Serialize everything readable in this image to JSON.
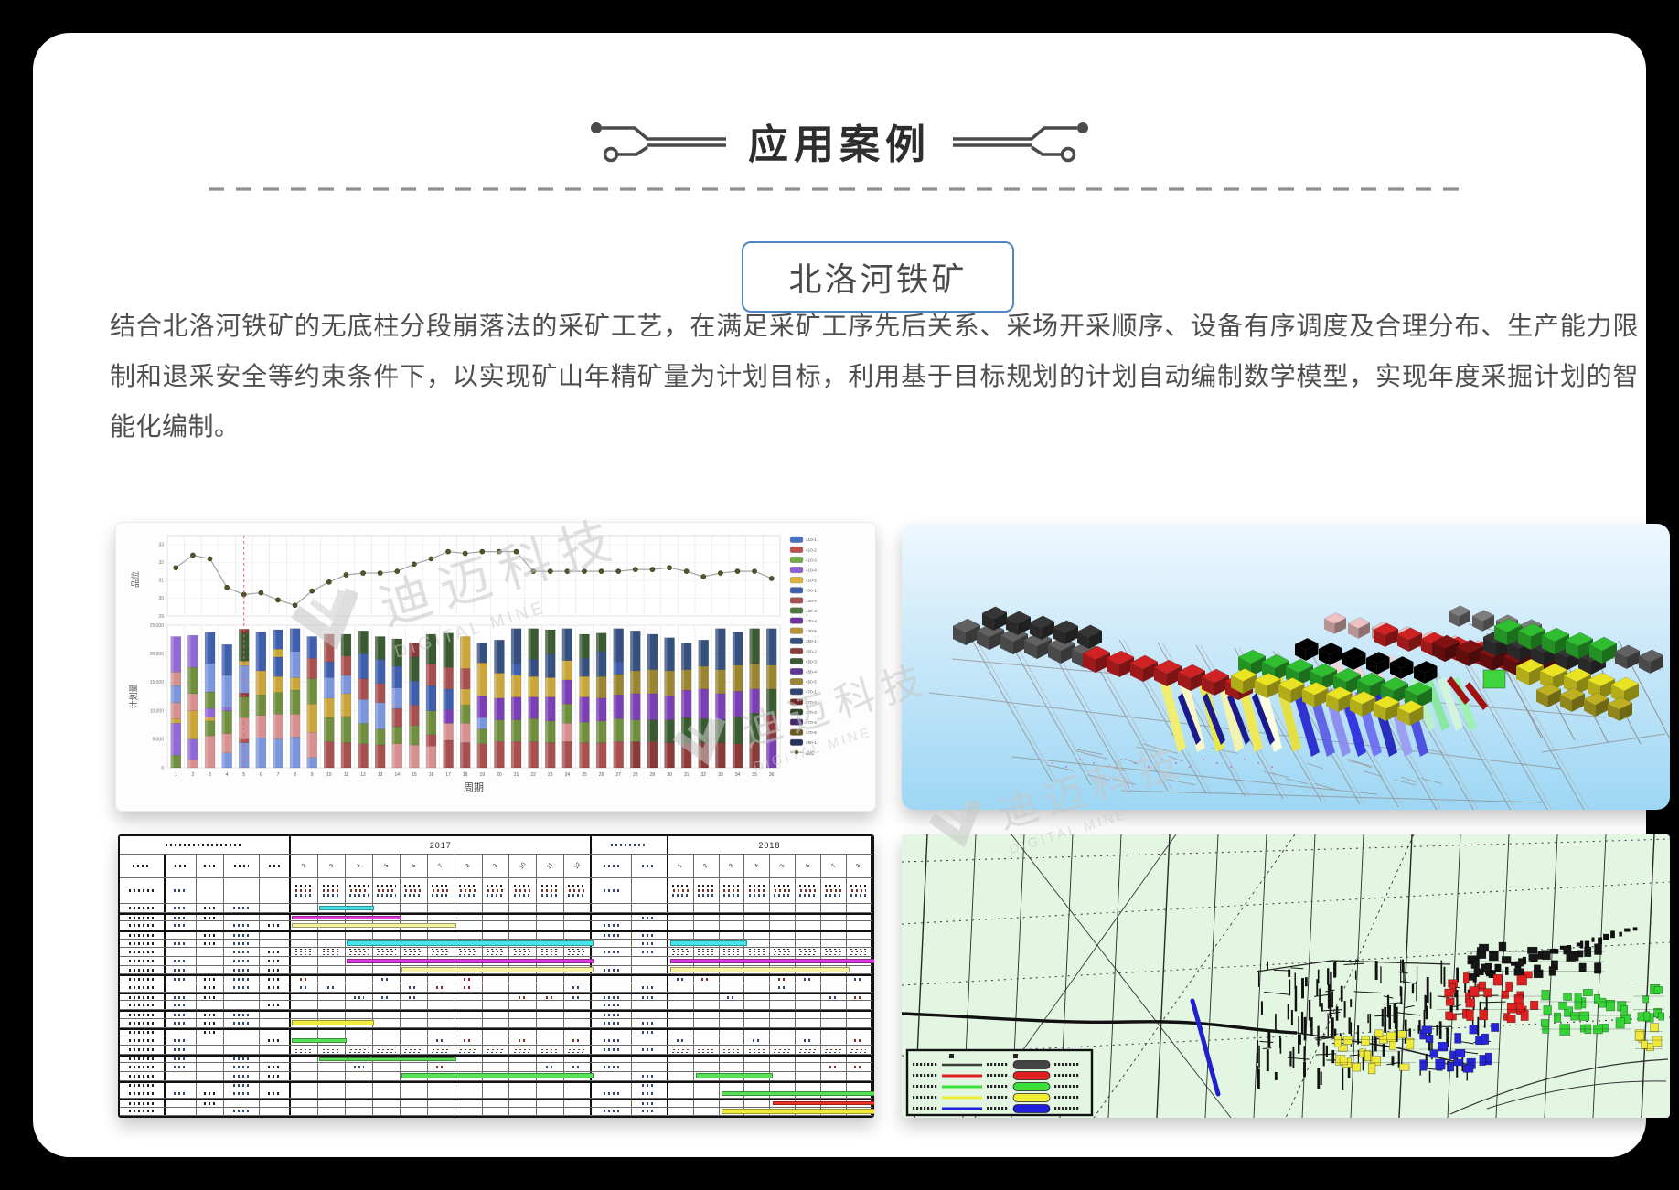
{
  "header": {
    "title": "应用案例"
  },
  "case": {
    "button_label": "北洛河铁矿"
  },
  "description": "结合北洛河铁矿的无底柱分段崩落法的采矿工艺，在满足采矿工序先后关系、采场开采顺序、设备有序调度及合理分布、生产能力限制和退采安全等约束条件下，以实现矿山年精矿量为计划目标，利用基于目标规划的计划自动编制数学模型，实现年度采掘计划的智能化编制。",
  "watermark": {
    "cn": "迪迈科技",
    "en": "DIGITAL MINE"
  },
  "chart_data": {
    "type": "bar",
    "title": "",
    "xlabel": "周期",
    "x": [
      1,
      2,
      3,
      4,
      5,
      6,
      7,
      8,
      9,
      10,
      11,
      12,
      13,
      14,
      15,
      16,
      17,
      18,
      19,
      20,
      21,
      22,
      23,
      24,
      25,
      26,
      27,
      28,
      29,
      30,
      31,
      32,
      33,
      34,
      35,
      36
    ],
    "line_series": {
      "name": "品位",
      "ylabel": "品位",
      "ylim": [
        29,
        33.5
      ],
      "yticks": [
        29,
        30,
        31,
        32,
        33
      ],
      "values": [
        31.7,
        32.4,
        32.2,
        30.6,
        30.2,
        30.3,
        29.9,
        29.6,
        30.4,
        30.9,
        31.3,
        31.4,
        31.4,
        31.5,
        31.9,
        32.2,
        32.6,
        32.5,
        32.6,
        32.6,
        32.6,
        31.5,
        31.5,
        31.5,
        31.5,
        31.5,
        31.5,
        31.6,
        31.6,
        31.7,
        31.5,
        31.2,
        31.4,
        31.5,
        31.5,
        31.1
      ]
    },
    "bar_ylabel": "计划量",
    "bar_ylim": [
      0,
      25000
    ],
    "bar_yticks": [
      0,
      5000,
      10000,
      15000,
      20000,
      25000
    ],
    "marker_period": 5,
    "marker_color": "#e06666",
    "bar_colors": [
      "#9168d8",
      "#6f8f3f",
      "#d79090",
      "#7b96dd",
      "#c9a53a",
      "#3f5fae",
      "#a85050",
      "#3a5a30",
      "#7a3fb5",
      "#8b3a3a",
      "#35507e",
      "#9a8530",
      "#5e3794"
    ],
    "legend_labels": [
      "410-1",
      "410-2",
      "410-3",
      "410-4",
      "410-5",
      "430-1",
      "430-2",
      "430-3",
      "430-4",
      "430-5",
      "450-1",
      "450-2",
      "450-3",
      "450-4",
      "450-5",
      "470-1",
      "470-2",
      "470-3",
      "470-4",
      "470-5",
      "490-1"
    ],
    "legend_colors": [
      "#4472c4",
      "#c0504d",
      "#70ad47",
      "#8f5fd6",
      "#e0b43c",
      "#3f5fae",
      "#a85050",
      "#4a7a3a",
      "#7030a0",
      "#b89530",
      "#35507e",
      "#8b3a3a",
      "#3a5a30",
      "#5e3794",
      "#9a8530",
      "#2f4470",
      "#6e2a2a",
      "#2d4628",
      "#46286e",
      "#6e5a1e",
      "#28345c"
    ],
    "bars": [
      [
        [
          1,
          2200
        ],
        [
          0,
          5600
        ],
        [
          4,
          800
        ],
        [
          2,
          2800
        ],
        [
          3,
          3000
        ],
        [
          2,
          2400
        ],
        [
          0,
          6200
        ]
      ],
      [
        [
          2,
          1400
        ],
        [
          0,
          3600
        ],
        [
          4,
          5000
        ],
        [
          2,
          3000
        ],
        [
          1,
          4600
        ],
        [
          0,
          5600
        ]
      ],
      [
        [
          2,
          5600
        ],
        [
          1,
          2600
        ],
        [
          4,
          700
        ],
        [
          0,
          1500
        ],
        [
          1,
          2900
        ],
        [
          3,
          5000
        ],
        [
          5,
          5400
        ]
      ],
      [
        [
          3,
          2600
        ],
        [
          2,
          3400
        ],
        [
          1,
          4000
        ],
        [
          0,
          600
        ],
        [
          3,
          5600
        ],
        [
          5,
          5400
        ]
      ],
      [
        [
          3,
          4400
        ],
        [
          6,
          600
        ],
        [
          2,
          3800
        ],
        [
          1,
          3600
        ],
        [
          9,
          700
        ],
        [
          3,
          4800
        ],
        [
          4,
          800
        ],
        [
          7,
          4900
        ],
        [
          9,
          700
        ]
      ],
      [
        [
          3,
          5200
        ],
        [
          2,
          4000
        ],
        [
          1,
          3600
        ],
        [
          4,
          4200
        ],
        [
          5,
          6800
        ]
      ],
      [
        [
          3,
          5000
        ],
        [
          2,
          4400
        ],
        [
          1,
          3800
        ],
        [
          4,
          2800
        ],
        [
          5,
          3400
        ],
        [
          4,
          1400
        ],
        [
          5,
          3400
        ]
      ],
      [
        [
          3,
          5400
        ],
        [
          2,
          4000
        ],
        [
          1,
          4200
        ],
        [
          4,
          2200
        ],
        [
          3,
          4600
        ],
        [
          5,
          4000
        ]
      ],
      [
        [
          3,
          1800
        ],
        [
          2,
          4400
        ],
        [
          4,
          5000
        ],
        [
          1,
          4400
        ],
        [
          6,
          3600
        ],
        [
          5,
          3800
        ]
      ],
      [
        [
          6,
          4600
        ],
        [
          1,
          4200
        ],
        [
          4,
          3400
        ],
        [
          3,
          3600
        ],
        [
          5,
          2800
        ],
        [
          6,
          4800
        ]
      ],
      [
        [
          6,
          4400
        ],
        [
          1,
          4600
        ],
        [
          4,
          4000
        ],
        [
          3,
          3200
        ],
        [
          6,
          3400
        ],
        [
          7,
          3800
        ]
      ],
      [
        [
          6,
          4200
        ],
        [
          1,
          3600
        ],
        [
          3,
          4200
        ],
        [
          6,
          3600
        ],
        [
          5,
          4400
        ],
        [
          7,
          4000
        ]
      ],
      [
        [
          6,
          4000
        ],
        [
          1,
          2800
        ],
        [
          3,
          4600
        ],
        [
          6,
          3400
        ],
        [
          5,
          4200
        ],
        [
          7,
          4000
        ]
      ],
      [
        [
          2,
          4200
        ],
        [
          1,
          3000
        ],
        [
          6,
          3200
        ],
        [
          3,
          3600
        ],
        [
          5,
          3800
        ],
        [
          7,
          4800
        ]
      ],
      [
        [
          2,
          4000
        ],
        [
          1,
          3400
        ],
        [
          6,
          3600
        ],
        [
          5,
          4200
        ],
        [
          7,
          4200
        ],
        [
          9,
          2400
        ]
      ],
      [
        [
          2,
          3800
        ],
        [
          6,
          2000
        ],
        [
          1,
          4200
        ],
        [
          5,
          4400
        ],
        [
          6,
          3800
        ],
        [
          7,
          5200
        ]
      ],
      [
        [
          6,
          4800
        ],
        [
          2,
          3000
        ],
        [
          8,
          2400
        ],
        [
          5,
          3600
        ],
        [
          6,
          3800
        ],
        [
          7,
          6000
        ]
      ],
      [
        [
          6,
          4400
        ],
        [
          2,
          3400
        ],
        [
          1,
          3200
        ],
        [
          4,
          2800
        ],
        [
          6,
          3600
        ],
        [
          4,
          5600
        ]
      ],
      [
        [
          6,
          4200
        ],
        [
          1,
          2600
        ],
        [
          3,
          2000
        ],
        [
          8,
          3800
        ],
        [
          4,
          5800
        ],
        [
          10,
          3400
        ]
      ],
      [
        [
          6,
          4600
        ],
        [
          1,
          3800
        ],
        [
          8,
          3800
        ],
        [
          4,
          4400
        ],
        [
          10,
          5800
        ]
      ],
      [
        [
          6,
          4600
        ],
        [
          1,
          3800
        ],
        [
          8,
          4000
        ],
        [
          4,
          3800
        ],
        [
          5,
          2000
        ],
        [
          10,
          6200
        ]
      ],
      [
        [
          6,
          4600
        ],
        [
          1,
          4000
        ],
        [
          8,
          3800
        ],
        [
          4,
          3600
        ],
        [
          10,
          3000
        ],
        [
          7,
          5400
        ]
      ],
      [
        [
          6,
          4400
        ],
        [
          1,
          3800
        ],
        [
          8,
          4200
        ],
        [
          4,
          3400
        ],
        [
          10,
          4200
        ],
        [
          7,
          4200
        ]
      ],
      [
        [
          6,
          4600
        ],
        [
          2,
          3200
        ],
        [
          1,
          3400
        ],
        [
          8,
          4200
        ],
        [
          4,
          3400
        ],
        [
          10,
          5600
        ]
      ],
      [
        [
          6,
          4400
        ],
        [
          1,
          3600
        ],
        [
          8,
          4400
        ],
        [
          4,
          3600
        ],
        [
          10,
          3200
        ],
        [
          7,
          4200
        ]
      ],
      [
        [
          6,
          4400
        ],
        [
          1,
          3800
        ],
        [
          8,
          4000
        ],
        [
          11,
          3800
        ],
        [
          10,
          4400
        ],
        [
          7,
          3200
        ]
      ],
      [
        [
          6,
          4600
        ],
        [
          1,
          4000
        ],
        [
          8,
          4200
        ],
        [
          11,
          3600
        ],
        [
          5,
          2200
        ],
        [
          10,
          5800
        ]
      ],
      [
        [
          9,
          4600
        ],
        [
          1,
          3800
        ],
        [
          8,
          4600
        ],
        [
          11,
          4000
        ],
        [
          10,
          7000
        ]
      ],
      [
        [
          9,
          4600
        ],
        [
          7,
          3800
        ],
        [
          8,
          4600
        ],
        [
          11,
          4200
        ],
        [
          10,
          6200
        ]
      ],
      [
        [
          9,
          4400
        ],
        [
          7,
          4000
        ],
        [
          8,
          4200
        ],
        [
          11,
          4400
        ],
        [
          10,
          5800
        ]
      ],
      [
        [
          9,
          4200
        ],
        [
          7,
          4600
        ],
        [
          8,
          4800
        ],
        [
          11,
          3600
        ],
        [
          10,
          4600
        ]
      ],
      [
        [
          9,
          4400
        ],
        [
          7,
          4200
        ],
        [
          8,
          5200
        ],
        [
          11,
          4000
        ],
        [
          10,
          4600
        ]
      ],
      [
        [
          9,
          4400
        ],
        [
          7,
          4000
        ],
        [
          8,
          4600
        ],
        [
          11,
          4200
        ],
        [
          10,
          7200
        ]
      ],
      [
        [
          9,
          4200
        ],
        [
          7,
          4800
        ],
        [
          8,
          4400
        ],
        [
          11,
          4600
        ],
        [
          10,
          5800
        ]
      ],
      [
        [
          9,
          4400
        ],
        [
          7,
          5200
        ],
        [
          8,
          4200
        ],
        [
          11,
          4400
        ],
        [
          7,
          6200
        ]
      ],
      [
        [
          8,
          5000
        ],
        [
          9,
          4200
        ],
        [
          7,
          4600
        ],
        [
          11,
          4200
        ],
        [
          10,
          6400
        ]
      ]
    ]
  },
  "table_panel": {
    "year1": "2017",
    "year2": "2018",
    "g1_month_labels": [
      "2",
      "3",
      "4",
      "5",
      "6",
      "7",
      "8",
      "9",
      "10",
      "11",
      "12"
    ],
    "g2_month_labels": [
      "1",
      "2",
      "3",
      "4",
      "5",
      "6",
      "7",
      "8"
    ],
    "bar_colors": {
      "cyan": "#45e6ee",
      "magenta": "#e23ae2",
      "paleyellow": "#f6f3a0",
      "yellow": "#f2ea3c",
      "green": "#58e058",
      "red": "#ee3326"
    },
    "rows": [
      {
        "h": 28,
        "dense": true
      },
      {
        "bars": [
          {
            "g": 1,
            "c": 2,
            "s": 2,
            "col": "cyan"
          }
        ]
      },
      {
        "bars": [
          {
            "g": 1,
            "c": 1,
            "s": 4,
            "col": "magenta"
          }
        ],
        "thick": true
      },
      {
        "bars": [
          {
            "g": 1,
            "c": 1,
            "s": 6,
            "col": "paleyellow"
          }
        ]
      },
      {
        "thick": true
      },
      {
        "bars": [
          {
            "g": 1,
            "c": 3,
            "s": 9,
            "col": "cyan"
          },
          {
            "g": 2,
            "c": 1,
            "s": 3,
            "col": "cyan"
          }
        ]
      },
      {
        "dense": true
      },
      {
        "bars": [
          {
            "g": 1,
            "c": 3,
            "s": 9,
            "col": "magenta"
          },
          {
            "g": 2,
            "c": 1,
            "s": 8,
            "col": "magenta"
          }
        ]
      },
      {
        "bars": [
          {
            "g": 1,
            "c": 5,
            "s": 7,
            "col": "paleyellow"
          },
          {
            "g": 2,
            "c": 1,
            "s": 7,
            "col": "paleyellow"
          }
        ]
      },
      {
        "thick": true,
        "scatter": true
      },
      {
        "scatter": true
      },
      {
        "thick": true,
        "scatter": true
      },
      {},
      {
        "thick": true
      },
      {
        "bars": [
          {
            "g": 1,
            "c": 1,
            "s": 3,
            "col": "yellow"
          }
        ]
      },
      {
        "dense": true,
        "thick": true
      },
      {
        "bars": [
          {
            "g": 1,
            "c": 1,
            "s": 2,
            "col": "green"
          }
        ],
        "scatter": true
      },
      {
        "dense": true
      },
      {
        "bars": [
          {
            "g": 1,
            "c": 2,
            "s": 5,
            "col": "green"
          }
        ],
        "thick": true
      },
      {
        "scatter": true
      },
      {
        "bars": [
          {
            "g": 1,
            "c": 5,
            "s": 7,
            "col": "green"
          },
          {
            "g": 2,
            "c": 2,
            "s": 3,
            "col": "green"
          }
        ]
      },
      {
        "dense": true,
        "thick": true
      },
      {
        "bars": [
          {
            "g": 2,
            "c": 3,
            "s": 6,
            "col": "green"
          }
        ]
      },
      {
        "bars": [
          {
            "g": 2,
            "c": 5,
            "s": 4,
            "col": "red"
          }
        ],
        "thick": true
      },
      {
        "bars": [
          {
            "g": 2,
            "c": 3,
            "s": 6,
            "col": "yellow"
          }
        ]
      }
    ]
  },
  "model_panel": {
    "colors": {
      "gray": "#5c5c5c",
      "dark": "#333333",
      "red": "#c62020",
      "green": "#2db52d",
      "yellow": "#ded81f",
      "blue": "#2424cc",
      "darkred": "#7a1111",
      "pink": "#e5b8b8",
      "wire": "#8f8f8f"
    }
  },
  "map_panel": {
    "bg": "#e2f6e2",
    "legend_colors": [
      "#3d3d3d",
      "#e02020",
      "#39e039",
      "#f0ee30",
      "#2020e0"
    ]
  }
}
